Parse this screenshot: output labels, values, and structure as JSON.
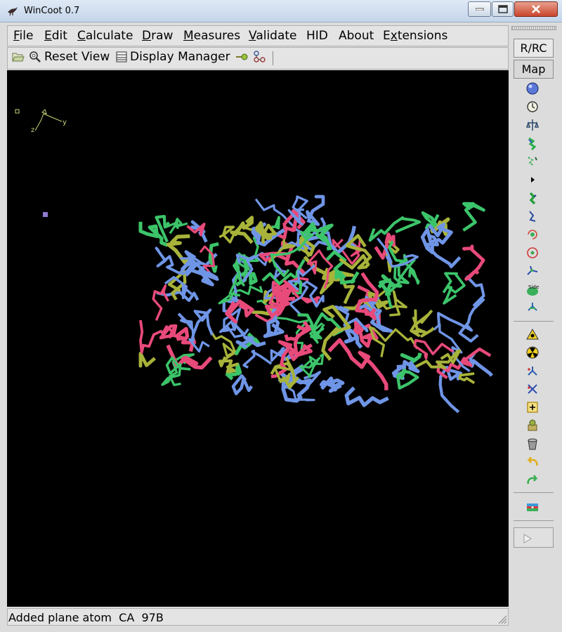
{
  "window": {
    "title": "WinCoot 0.7",
    "icon": "coot-bird-icon"
  },
  "menubar": {
    "items": [
      {
        "label": "File",
        "mnemonic": "F"
      },
      {
        "label": "Edit",
        "mnemonic": "E"
      },
      {
        "label": "Calculate",
        "mnemonic": "C"
      },
      {
        "label": "Draw",
        "mnemonic": "D"
      },
      {
        "label": "Measures",
        "mnemonic": "M"
      },
      {
        "label": "Validate",
        "mnemonic": "V"
      },
      {
        "label": "HID",
        "mnemonic": ""
      },
      {
        "label": "About",
        "mnemonic": ""
      },
      {
        "label": "Extensions",
        "mnemonic": "x"
      }
    ]
  },
  "toolbar": {
    "open_icon": "folder-open-icon",
    "reset_view": "Reset View",
    "display_manager": "Display Manager",
    "cylinder_icon": "cylinder-icon",
    "atom_label_icon": "atom-label-icon"
  },
  "viewer": {
    "axes": {
      "x": "x",
      "y": "y",
      "z": "z"
    },
    "background": "#000000",
    "chain_colors": [
      "#6f95e6",
      "#e84a7a",
      "#3cc46a",
      "#a8b33a"
    ]
  },
  "right_panel": {
    "rrc_label": "R/RC",
    "map_label": "Map",
    "tools_group1": [
      "refine-sphere-icon",
      "regularize-icon",
      "rigid-body-fit-icon",
      "auto-fit-rotamer-icon",
      "rotamer-icon",
      "play-arrow-icon",
      "edit-chi-angles-icon",
      "torsion-general-icon",
      "flip-peptide-icon",
      "side-chain-180-icon",
      "edit-backbone-icon",
      "mutate-side-icon",
      "mutate-autofit-icon"
    ],
    "tools_group2": [
      "add-terminal-residue-icon",
      "add-atom-radioactive-icon",
      "add-alt-conf-icon",
      "delete-icon",
      "place-atom-icon",
      "find-waters-icon",
      "clear-pending-icon",
      "undo-icon",
      "redo-icon"
    ],
    "tools_group3": [
      "flag-icon"
    ],
    "play_icon": "play-triangle-icon"
  },
  "status": {
    "text": "Added plane atom  CA  97B"
  }
}
